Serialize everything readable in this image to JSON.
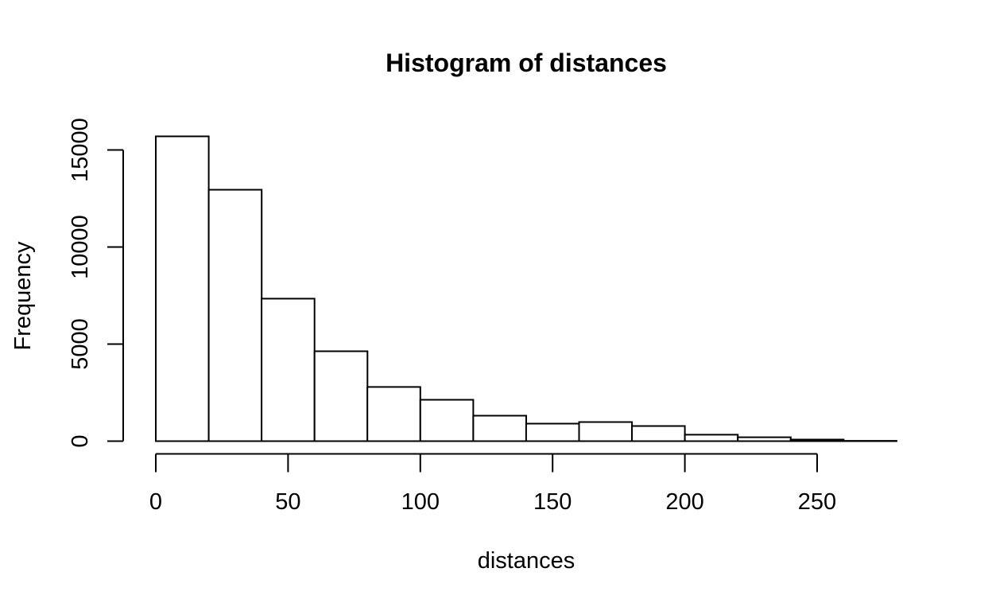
{
  "chart_data": {
    "type": "bar",
    "subtype": "histogram",
    "title": "Histogram of distances",
    "xlabel": "distances",
    "ylabel": "Frequency",
    "bin_width": 20,
    "bin_edges": [
      0,
      20,
      40,
      60,
      80,
      100,
      120,
      140,
      160,
      180,
      200,
      220,
      240,
      260,
      280
    ],
    "categories": [
      "0-20",
      "20-40",
      "40-60",
      "60-80",
      "80-100",
      "100-120",
      "120-140",
      "140-160",
      "160-180",
      "180-200",
      "200-220",
      "220-240",
      "240-260",
      "260-280"
    ],
    "values": [
      15700,
      12950,
      7340,
      4630,
      2790,
      2130,
      1310,
      900,
      985,
      780,
      330,
      200,
      80,
      15
    ],
    "x_ticks": [
      0,
      50,
      100,
      150,
      200,
      250
    ],
    "x_tick_labels": [
      "0",
      "50",
      "100",
      "150",
      "200",
      "250"
    ],
    "y_ticks": [
      0,
      5000,
      10000,
      15000
    ],
    "y_tick_labels": [
      "0",
      "5000",
      "10000",
      "15000"
    ],
    "xlim": [
      0,
      280
    ],
    "ylim": [
      0,
      15700
    ],
    "grid": false,
    "legend": false,
    "bar_fill": "#ffffff",
    "bar_stroke": "#000000",
    "axis_color": "#000000",
    "text_color": "#000000",
    "background": "#ffffff"
  }
}
